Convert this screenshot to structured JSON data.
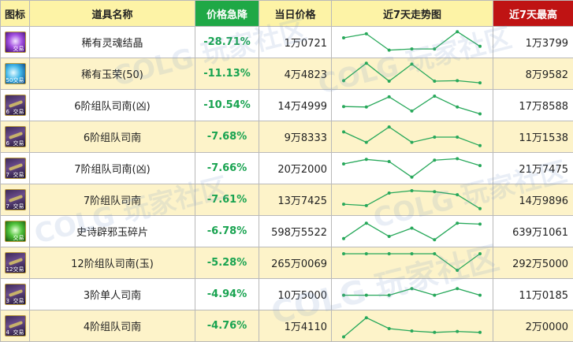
{
  "headers": {
    "icon": "图标",
    "name": "道具名称",
    "drop": "价格急降",
    "today": "当日价格",
    "trend": "近7天走势图",
    "max": "近7天最高"
  },
  "colors": {
    "header_bg": "#fdf3a6",
    "drop_header_bg": "#1fa846",
    "max_header_bg": "#bf1313",
    "alt_row_bg": "#fdf3c9",
    "drop_text": "#18a350",
    "trend_line": "#27a85a"
  },
  "icon_badge": "交易",
  "watermark": "COLG 玩家社区",
  "rows": [
    {
      "icon": "purple-orb-icon",
      "badge_level": "",
      "name": "稀有灵魂结晶",
      "drop": "-28.71%",
      "today": "1万0721",
      "max": "1万3799",
      "trend": [
        0.3,
        0.13,
        0.82,
        0.77,
        0.77,
        0.04,
        0.66
      ]
    },
    {
      "icon": "blue-orb-icon",
      "badge_level": "50",
      "name": "稀有玉荣(50)",
      "drop": "-11.13%",
      "today": "4万4823",
      "max": "8万9582",
      "trend": [
        0.78,
        0.04,
        0.8,
        0.08,
        0.8,
        0.78,
        0.87
      ]
    },
    {
      "icon": "compass-icon",
      "badge_level": "6",
      "name": "6阶组队司南(凶)",
      "drop": "-10.54%",
      "today": "14万4999",
      "max": "17万8588",
      "trend": [
        0.54,
        0.56,
        0.13,
        0.73,
        0.1,
        0.56,
        0.85
      ]
    },
    {
      "icon": "compass-icon",
      "badge_level": "6",
      "name": "6阶组队司南",
      "drop": "-7.68%",
      "today": "9万8333",
      "max": "11万1538",
      "trend": [
        0.28,
        0.72,
        0.07,
        0.72,
        0.5,
        0.5,
        0.86
      ]
    },
    {
      "icon": "compass-icon",
      "badge_level": "7",
      "name": "7阶组队司南(凶)",
      "drop": "-7.66%",
      "today": "20万2000",
      "max": "21万7475",
      "trend": [
        0.3,
        0.11,
        0.2,
        0.86,
        0.14,
        0.08,
        0.37
      ]
    },
    {
      "icon": "compass-icon",
      "badge_level": "7",
      "name": "7阶组队司南",
      "drop": "-7.61%",
      "today": "13万7425",
      "max": "14万9896",
      "trend": [
        0.67,
        0.73,
        0.2,
        0.1,
        0.14,
        0.27,
        0.86
      ]
    },
    {
      "icon": "green-orb-icon",
      "badge_level": "",
      "name": "史诗辟邪玉碎片",
      "drop": "-6.78%",
      "today": "598万5522",
      "max": "639万1061",
      "trend": [
        0.79,
        0.14,
        0.7,
        0.35,
        0.84,
        0.14,
        0.18
      ]
    },
    {
      "icon": "compass-icon",
      "badge_level": "12",
      "name": "12阶组队司南(玉)",
      "drop": "-5.28%",
      "today": "265万0069",
      "max": "292万5000",
      "trend": [
        0.1,
        0.1,
        0.1,
        0.1,
        0.1,
        0.8,
        0.1
      ]
    },
    {
      "icon": "compass-icon",
      "badge_level": "3",
      "name": "3阶单人司南",
      "drop": "-4.94%",
      "today": "10万5000",
      "max": "11万0185",
      "trend": [
        0.52,
        0.52,
        0.52,
        0.24,
        0.52,
        0.24,
        0.52
      ]
    },
    {
      "icon": "compass-icon",
      "badge_level": "4",
      "name": "4阶组队司南",
      "drop": "-4.76%",
      "today": "1万4110",
      "max": "2万0000",
      "trend": [
        0.95,
        0.14,
        0.6,
        0.7,
        0.76,
        0.72,
        0.76
      ]
    }
  ]
}
